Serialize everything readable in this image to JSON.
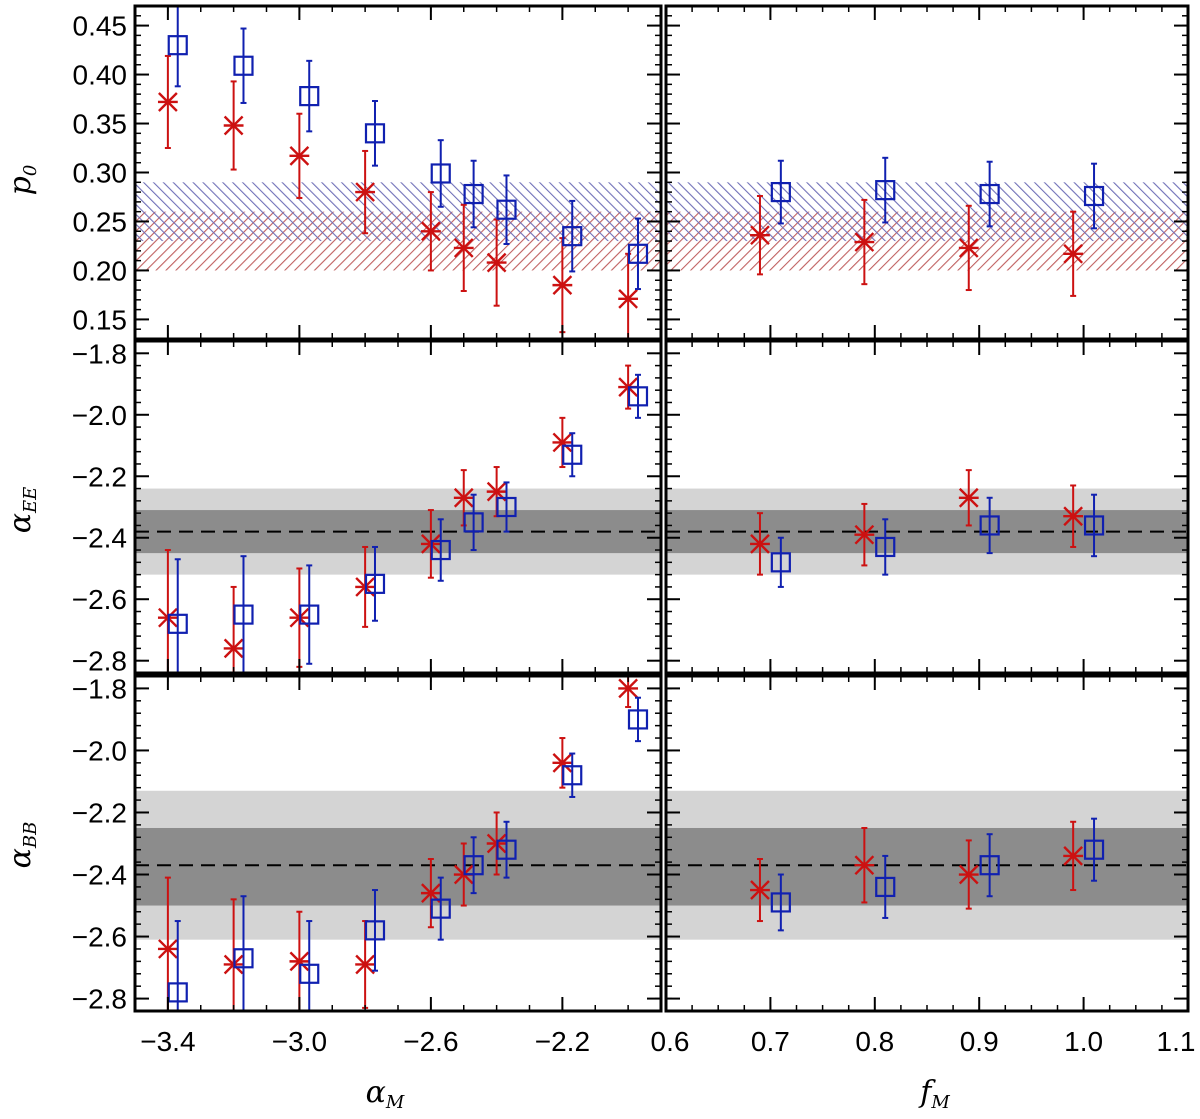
{
  "colors": {
    "red": "#cc1111",
    "blue": "#1020b0",
    "band_light": "#d4d4d4",
    "band_dark": "#8c8c8c",
    "hatch_red": "#c06060",
    "hatch_blue": "#7070b8"
  },
  "chart_data": [
    {
      "type": "scatter",
      "panel": "p0-vs-alphaM",
      "ylabel": "p0",
      "ylabel_main": "p",
      "ylabel_sub": "0",
      "xlabel": "",
      "xlim": [
        -3.5,
        -1.9
      ],
      "ylim": [
        0.13,
        0.47
      ],
      "yticks": [
        0.15,
        0.2,
        0.25,
        0.3,
        0.35,
        0.4,
        0.45
      ],
      "ytick_labels": [
        "0.15",
        "0.20",
        "0.25",
        "0.30",
        "0.35",
        "0.40",
        "0.45"
      ],
      "hatched_bands": [
        {
          "name": "EE",
          "color": "red",
          "y0": 0.2,
          "y1": 0.26
        },
        {
          "name": "BB",
          "color": "blue",
          "y0": 0.23,
          "y1": 0.29
        }
      ],
      "series": [
        {
          "name": "EE",
          "marker": "asterisk",
          "color": "red",
          "x": [
            -3.4,
            -3.2,
            -3.0,
            -2.8,
            -2.6,
            -2.5,
            -2.4,
            -2.2,
            -2.0
          ],
          "y": [
            0.372,
            0.348,
            0.317,
            0.28,
            0.24,
            0.223,
            0.208,
            0.185,
            0.171
          ],
          "err": [
            0.047,
            0.045,
            0.043,
            0.042,
            0.04,
            0.044,
            0.044,
            0.048,
            0.046
          ]
        },
        {
          "name": "BB",
          "marker": "square",
          "color": "blue",
          "x": [
            -3.37,
            -3.17,
            -2.97,
            -2.77,
            -2.57,
            -2.47,
            -2.37,
            -2.17,
            -1.97
          ],
          "y": [
            0.43,
            0.409,
            0.378,
            0.34,
            0.299,
            0.278,
            0.262,
            0.235,
            0.217
          ],
          "err": [
            0.042,
            0.038,
            0.036,
            0.033,
            0.034,
            0.034,
            0.035,
            0.036,
            0.036
          ]
        }
      ]
    },
    {
      "type": "scatter",
      "panel": "p0-vs-fM",
      "ylabel": "",
      "xlabel": "",
      "xlim": [
        0.6,
        1.1
      ],
      "ylim": [
        0.13,
        0.47
      ],
      "hatched_bands": [
        {
          "name": "EE",
          "color": "red",
          "y0": 0.2,
          "y1": 0.26
        },
        {
          "name": "BB",
          "color": "blue",
          "y0": 0.23,
          "y1": 0.29
        }
      ],
      "series": [
        {
          "name": "EE",
          "marker": "asterisk",
          "color": "red",
          "x": [
            0.69,
            0.79,
            0.89,
            0.99
          ],
          "y": [
            0.236,
            0.229,
            0.223,
            0.217
          ],
          "err": [
            0.04,
            0.043,
            0.043,
            0.043
          ]
        },
        {
          "name": "BB",
          "marker": "square",
          "color": "blue",
          "x": [
            0.71,
            0.81,
            0.91,
            1.01
          ],
          "y": [
            0.28,
            0.282,
            0.278,
            0.276
          ],
          "err": [
            0.032,
            0.033,
            0.033,
            0.033
          ]
        }
      ]
    },
    {
      "type": "scatter",
      "panel": "alphaEE-vs-alphaM",
      "ylabel": "alpha_EE",
      "ylabel_main": "α",
      "ylabel_sub": "EE",
      "xlabel": "",
      "xlim": [
        -3.5,
        -1.9
      ],
      "ylim": [
        -2.84,
        -1.76
      ],
      "yticks": [
        -2.8,
        -2.6,
        -2.4,
        -2.2,
        -2.0,
        -1.8
      ],
      "ytick_labels": [
        "−2.8",
        "−2.6",
        "−2.4",
        "−2.2",
        "−2.0",
        "−1.8"
      ],
      "reference_line": -2.38,
      "bands": [
        {
          "name": "outer",
          "y0": -2.52,
          "y1": -2.24
        },
        {
          "name": "inner",
          "y0": -2.45,
          "y1": -2.31
        }
      ],
      "series": [
        {
          "name": "EE",
          "marker": "asterisk",
          "color": "red",
          "x": [
            -3.4,
            -3.2,
            -3.0,
            -2.8,
            -2.6,
            -2.5,
            -2.4,
            -2.2,
            -2.0
          ],
          "y": [
            -2.66,
            -2.76,
            -2.66,
            -2.56,
            -2.42,
            -2.27,
            -2.25,
            -2.09,
            -1.91
          ],
          "err": [
            0.22,
            0.2,
            0.16,
            0.13,
            0.11,
            0.09,
            0.08,
            0.08,
            0.07
          ]
        },
        {
          "name": "BB",
          "marker": "square",
          "color": "blue",
          "x": [
            -3.37,
            -3.17,
            -2.97,
            -2.77,
            -2.57,
            -2.47,
            -2.37,
            -2.17,
            -1.97
          ],
          "y": [
            -2.68,
            -2.65,
            -2.65,
            -2.55,
            -2.44,
            -2.35,
            -2.3,
            -2.13,
            -1.94
          ],
          "err": [
            0.21,
            0.19,
            0.16,
            0.12,
            0.1,
            0.09,
            0.08,
            0.07,
            0.07
          ]
        }
      ]
    },
    {
      "type": "scatter",
      "panel": "alphaEE-vs-fM",
      "ylabel": "",
      "xlabel": "",
      "xlim": [
        0.6,
        1.1
      ],
      "ylim": [
        -2.84,
        -1.76
      ],
      "reference_line": -2.38,
      "bands": [
        {
          "name": "outer",
          "y0": -2.52,
          "y1": -2.24
        },
        {
          "name": "inner",
          "y0": -2.45,
          "y1": -2.31
        }
      ],
      "series": [
        {
          "name": "EE",
          "marker": "asterisk",
          "color": "red",
          "x": [
            0.69,
            0.79,
            0.89,
            0.99
          ],
          "y": [
            -2.42,
            -2.39,
            -2.27,
            -2.33
          ],
          "err": [
            0.1,
            0.1,
            0.09,
            0.1
          ]
        },
        {
          "name": "BB",
          "marker": "square",
          "color": "blue",
          "x": [
            0.71,
            0.81,
            0.91,
            1.01
          ],
          "y": [
            -2.48,
            -2.43,
            -2.36,
            -2.36
          ],
          "err": [
            0.08,
            0.09,
            0.09,
            0.1
          ]
        }
      ]
    },
    {
      "type": "scatter",
      "panel": "alphaBB-vs-alphaM",
      "ylabel": "alpha_BB",
      "ylabel_main": "α",
      "ylabel_sub": "BB",
      "xlabel": "alpha_M",
      "xlabel_main": "α",
      "xlabel_sub": "M",
      "xlim": [
        -3.5,
        -1.9
      ],
      "ylim": [
        -2.84,
        -1.76
      ],
      "xticks": [
        -3.4,
        -3.0,
        -2.6,
        -2.2
      ],
      "xtick_labels": [
        "−3.4",
        "−3.0",
        "−2.6",
        "−2.2"
      ],
      "yticks": [
        -2.8,
        -2.6,
        -2.4,
        -2.2,
        -2.0,
        -1.8
      ],
      "ytick_labels": [
        "−2.8",
        "−2.6",
        "−2.4",
        "−2.2",
        "−2.0",
        "−1.8"
      ],
      "reference_line": -2.37,
      "bands": [
        {
          "name": "outer",
          "y0": -2.61,
          "y1": -2.13
        },
        {
          "name": "inner",
          "y0": -2.5,
          "y1": -2.25
        }
      ],
      "series": [
        {
          "name": "EE",
          "marker": "asterisk",
          "color": "red",
          "x": [
            -3.4,
            -3.2,
            -3.0,
            -2.8,
            -2.6,
            -2.5,
            -2.4,
            -2.2,
            -2.0
          ],
          "y": [
            -2.64,
            -2.69,
            -2.68,
            -2.69,
            -2.46,
            -2.4,
            -2.3,
            -2.04,
            -1.8
          ],
          "err": [
            0.23,
            0.21,
            0.16,
            0.14,
            0.11,
            0.1,
            0.1,
            0.08,
            0.06
          ]
        },
        {
          "name": "BB",
          "marker": "square",
          "color": "blue",
          "x": [
            -3.37,
            -3.17,
            -2.97,
            -2.77,
            -2.57,
            -2.47,
            -2.37,
            -2.17,
            -1.97
          ],
          "y": [
            -2.78,
            -2.67,
            -2.72,
            -2.58,
            -2.51,
            -2.37,
            -2.32,
            -2.08,
            -1.9
          ],
          "err": [
            0.23,
            0.2,
            0.17,
            0.13,
            0.1,
            0.09,
            0.09,
            0.07,
            0.07
          ]
        }
      ]
    },
    {
      "type": "scatter",
      "panel": "alphaBB-vs-fM",
      "ylabel": "",
      "xlabel": "f_M",
      "xlabel_main": "f",
      "xlabel_sub": "M",
      "xlim": [
        0.6,
        1.1
      ],
      "ylim": [
        -2.84,
        -1.76
      ],
      "xticks": [
        0.6,
        0.7,
        0.8,
        0.9,
        1.0,
        1.1
      ],
      "xtick_labels": [
        "0.6",
        "0.7",
        "0.8",
        "0.9",
        "1.0",
        "1.1"
      ],
      "reference_line": -2.37,
      "bands": [
        {
          "name": "outer",
          "y0": -2.61,
          "y1": -2.13
        },
        {
          "name": "inner",
          "y0": -2.5,
          "y1": -2.25
        }
      ],
      "series": [
        {
          "name": "EE",
          "marker": "asterisk",
          "color": "red",
          "x": [
            0.69,
            0.79,
            0.89,
            0.99
          ],
          "y": [
            -2.45,
            -2.37,
            -2.4,
            -2.34
          ],
          "err": [
            0.1,
            0.12,
            0.11,
            0.11
          ]
        },
        {
          "name": "BB",
          "marker": "square",
          "color": "blue",
          "x": [
            0.71,
            0.81,
            0.91,
            1.01
          ],
          "y": [
            -2.49,
            -2.44,
            -2.37,
            -2.32
          ],
          "err": [
            0.09,
            0.1,
            0.1,
            0.1
          ]
        }
      ]
    }
  ]
}
